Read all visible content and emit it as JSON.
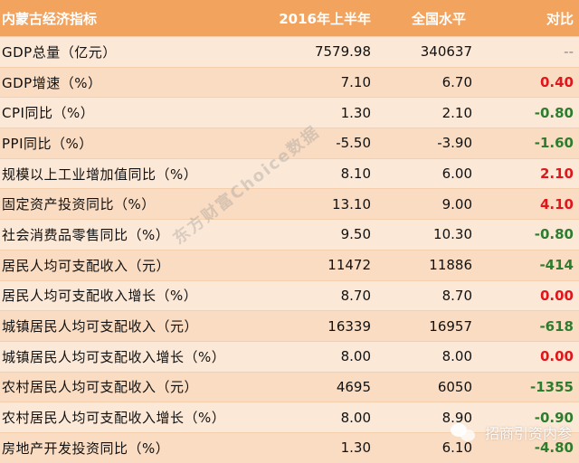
{
  "header": {
    "indicator": "内蒙古经济指标",
    "h2016": "2016年上半年",
    "national": "全国水平",
    "compare": "对比"
  },
  "rows": [
    {
      "indicator": "GDP总量（亿元）",
      "v2016": "7579.98",
      "national": "340637",
      "compare": "--",
      "tone": "neu"
    },
    {
      "indicator": "GDP增速（%）",
      "v2016": "7.10",
      "national": "6.70",
      "compare": "0.40",
      "tone": "pos"
    },
    {
      "indicator": "CPI同比（%）",
      "v2016": "1.30",
      "national": "2.10",
      "compare": "-0.80",
      "tone": "neg"
    },
    {
      "indicator": "PPI同比（%）",
      "v2016": "-5.50",
      "national": "-3.90",
      "compare": "-1.60",
      "tone": "neg"
    },
    {
      "indicator": "规模以上工业增加值同比（%）",
      "v2016": "8.10",
      "national": "6.00",
      "compare": "2.10",
      "tone": "pos"
    },
    {
      "indicator": "固定资产投资同比（%）",
      "v2016": "13.10",
      "national": "9.00",
      "compare": "4.10",
      "tone": "pos"
    },
    {
      "indicator": "社会消费品零售同比（%）",
      "v2016": "9.50",
      "national": "10.30",
      "compare": "-0.80",
      "tone": "neg"
    },
    {
      "indicator": "居民人均可支配收入（元）",
      "v2016": "11472",
      "national": "11886",
      "compare": "-414",
      "tone": "neg"
    },
    {
      "indicator": "居民人均可支配收入增长（%）",
      "v2016": "8.70",
      "national": "8.70",
      "compare": "0.00",
      "tone": "pos"
    },
    {
      "indicator": "城镇居民人均可支配收入（元）",
      "v2016": "16339",
      "national": "16957",
      "compare": "-618",
      "tone": "neg"
    },
    {
      "indicator": "城镇居民人均可支配收入增长（%）",
      "v2016": "8.00",
      "national": "8.00",
      "compare": "0.00",
      "tone": "pos"
    },
    {
      "indicator": "农村居民人均可支配收入（元）",
      "v2016": "4695",
      "national": "6050",
      "compare": "-1355",
      "tone": "neg"
    },
    {
      "indicator": "农村居民人均可支配收入增长（%）",
      "v2016": "8.00",
      "national": "8.90",
      "compare": "-0.90",
      "tone": "neg"
    },
    {
      "indicator": "房地产开发投资同比（%）",
      "v2016": "1.30",
      "national": "6.10",
      "compare": "-4.80",
      "tone": "neg"
    }
  ],
  "watermark": "东方财富Choice数据",
  "wechat": {
    "label": "招商引资内参",
    "icon": "wechat-icon"
  },
  "colors": {
    "header_bg": "#f2a35e",
    "positive": "#e0161b",
    "negative": "#2e7d2e"
  }
}
